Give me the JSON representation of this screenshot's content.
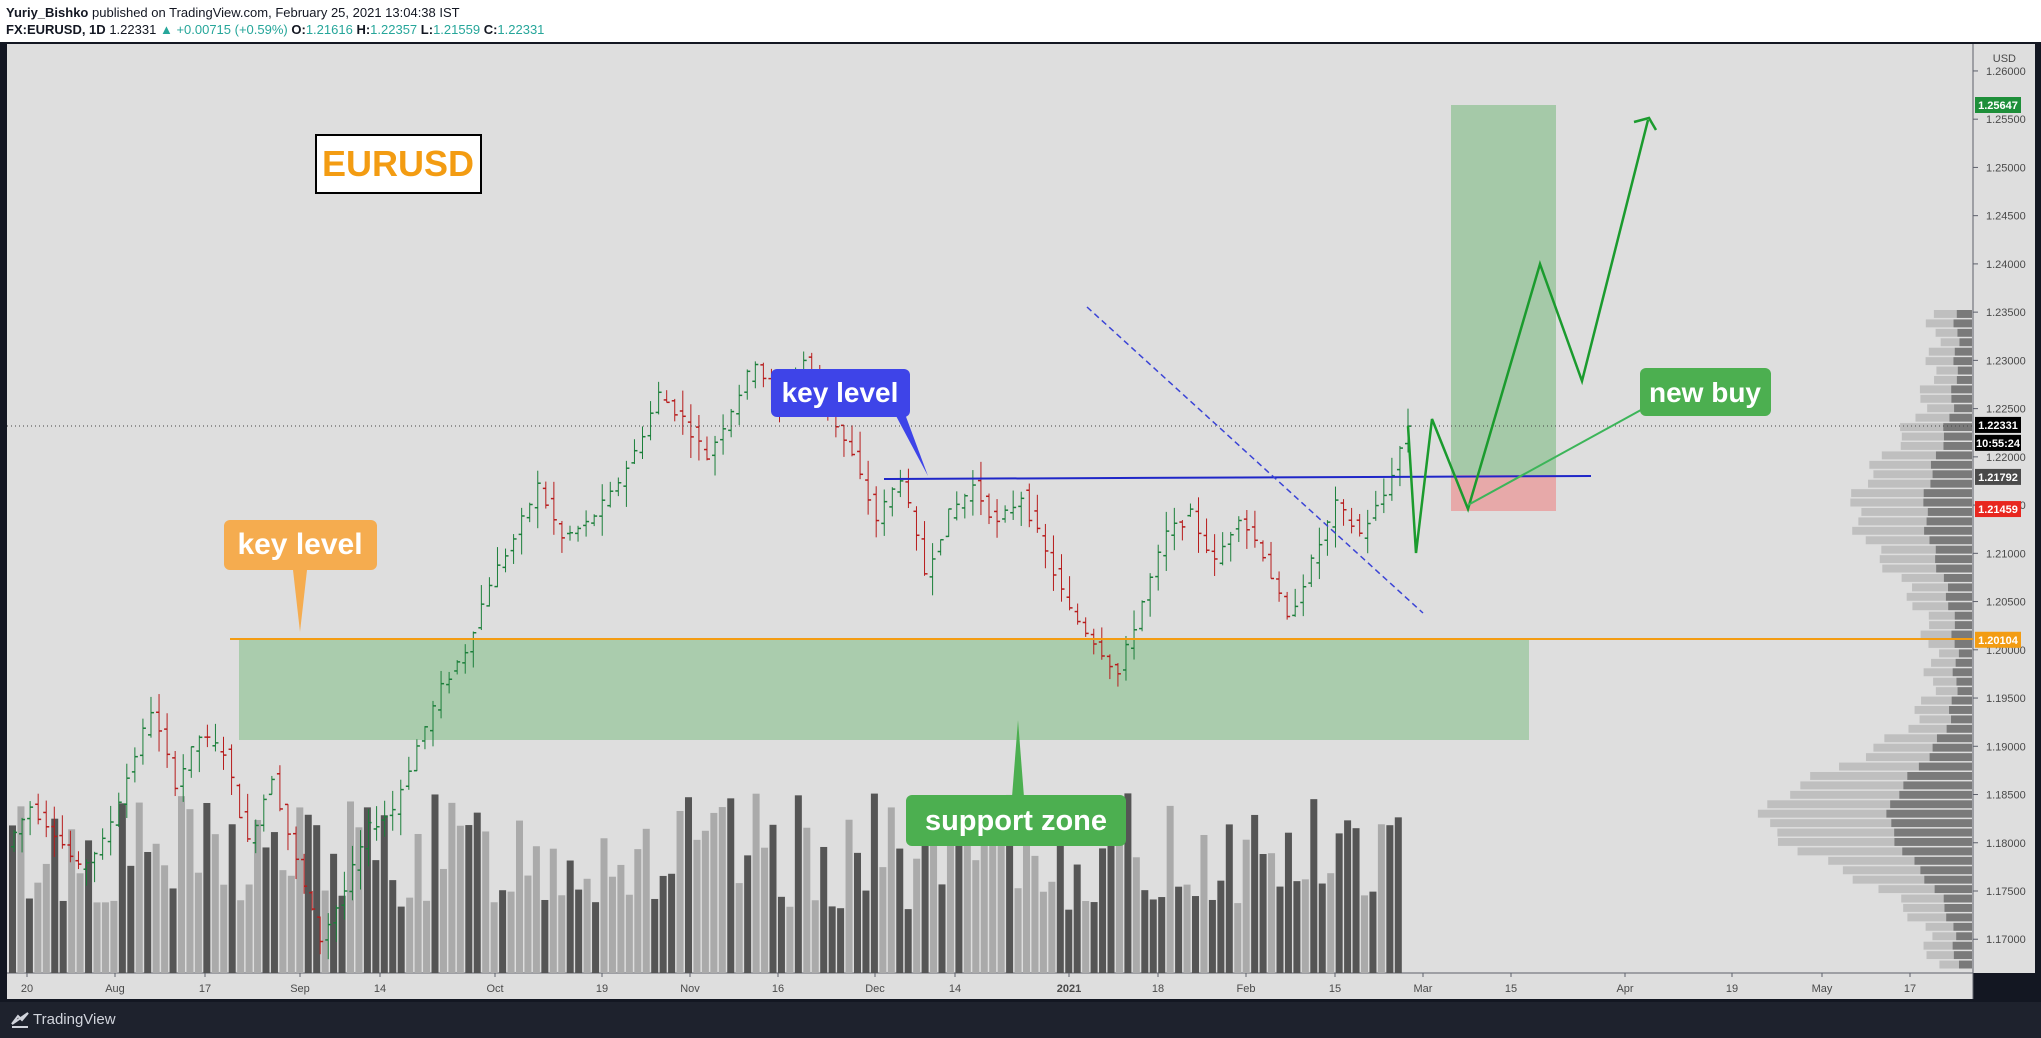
{
  "header": {
    "author": "Yuriy_Bishko",
    "published": "published on TradingView.com, February 25, 2021 13:04:38 IST",
    "symbol": "FX:EURUSD, 1D",
    "last": "1.22331",
    "change": "+0.00715 (+0.59%)",
    "o_label": "O:",
    "o": "1.21616",
    "h_label": "H:",
    "h": "1.22357",
    "l_label": "L:",
    "l": "1.21559",
    "c_label": "C:",
    "c": "1.22331"
  },
  "footer": {
    "brand": "TradingView"
  },
  "chart_data": {
    "type": "candlestick",
    "symbol": "EURUSD",
    "interval": "1D",
    "currency": "USD",
    "y_axis": {
      "range": [
        1.1665,
        1.263
      ],
      "ticks": [
        "1.26000",
        "1.25500",
        "1.25000",
        "1.24500",
        "1.24000",
        "1.23500",
        "1.23000",
        "1.22500",
        "1.22000",
        "1.21500",
        "1.21000",
        "1.20500",
        "1.20000",
        "1.19500",
        "1.19000",
        "1.18500",
        "1.18000",
        "1.17500",
        "1.17000"
      ]
    },
    "x_axis": {
      "labels": [
        "20",
        "Aug",
        "17",
        "Sep",
        "14",
        "Oct",
        "19",
        "Nov",
        "16",
        "Dec",
        "14",
        "2021",
        "18",
        "Feb",
        "15",
        "Mar",
        "15",
        "Apr",
        "19",
        "May",
        "17"
      ]
    },
    "price_labels": [
      {
        "text": "1.25647",
        "price": 1.25647,
        "color": "#1e8f3a"
      },
      {
        "text": "1.22331",
        "price": 1.22331,
        "color": "#000000"
      },
      {
        "text": "10:55:24",
        "price": 1.22145,
        "color": "#000000"
      },
      {
        "text": "1.21792",
        "price": 1.21792,
        "color": "#4a4a4a"
      },
      {
        "text": "1.21459",
        "price": 1.21459,
        "color": "#e8271f"
      },
      {
        "text": "1.20104",
        "price": 1.20104,
        "color": "#f39c12"
      }
    ],
    "series_path": [
      [
        1.1796,
        1.1838
      ],
      [
        1.1838,
        1.1812
      ],
      [
        1.1812,
        1.1772
      ],
      [
        1.1772,
        1.18
      ],
      [
        1.18,
        1.1868
      ],
      [
        1.1868,
        1.1938
      ],
      [
        1.1938,
        1.1862
      ],
      [
        1.1862,
        1.191
      ],
      [
        1.191,
        1.1895
      ],
      [
        1.1895,
        1.18
      ],
      [
        1.18,
        1.187
      ],
      [
        1.187,
        1.178
      ],
      [
        1.178,
        1.17
      ],
      [
        1.17,
        1.175
      ],
      [
        1.175,
        1.1815
      ],
      [
        1.1815,
        1.1835
      ],
      [
        1.1835,
        1.19
      ],
      [
        1.19,
        1.196
      ],
      [
        1.196,
        1.2
      ],
      [
        1.2,
        1.207
      ],
      [
        1.207,
        1.2115
      ],
      [
        1.2115,
        1.217
      ],
      [
        1.217,
        1.2115
      ],
      [
        1.2115,
        1.213
      ],
      [
        1.213,
        1.216
      ],
      [
        1.216,
        1.2205
      ],
      [
        1.2205,
        1.2265
      ],
      [
        1.2265,
        1.224
      ],
      [
        1.224,
        1.22
      ],
      [
        1.22,
        1.225
      ],
      [
        1.225,
        1.23
      ],
      [
        1.23,
        1.225
      ],
      [
        1.225,
        1.23
      ],
      [
        1.23,
        1.225
      ],
      [
        1.225,
        1.22
      ],
      [
        1.22,
        1.2135
      ],
      [
        1.2135,
        1.218
      ],
      [
        1.218,
        1.208
      ],
      [
        1.208,
        1.214
      ],
      [
        1.214,
        1.217
      ],
      [
        1.217,
        1.213
      ],
      [
        1.213,
        1.216
      ],
      [
        1.216,
        1.21
      ],
      [
        1.21,
        1.204
      ],
      [
        1.204,
        1.201
      ],
      [
        1.201,
        1.1975
      ],
      [
        1.1975,
        1.205
      ],
      [
        1.205,
        1.212
      ],
      [
        1.212,
        1.214
      ],
      [
        1.214,
        1.209
      ],
      [
        1.209,
        1.214
      ],
      [
        1.214,
        1.21
      ],
      [
        1.21,
        1.203
      ],
      [
        1.203,
        1.209
      ],
      [
        1.209,
        1.215
      ],
      [
        1.215,
        1.212
      ],
      [
        1.212,
        1.216
      ],
      [
        1.216,
        1.2233
      ]
    ],
    "volume_note": "volume histogram along the bottom and volume profile on right",
    "drawings": {
      "title_box": "EURUSD",
      "orange_key_level": {
        "label": "key level",
        "price": 1.20104
      },
      "blue_key_level": {
        "label": "key level",
        "price_start": 1.2179,
        "price_end": 1.2181
      },
      "support_zone": {
        "label": "support zone",
        "top": 1.2003,
        "bottom": 1.1895
      },
      "new_buy": {
        "label": "new buy",
        "entry": 1.21459,
        "stop": 1.21459,
        "target": 1.25647
      },
      "projection_path": [
        1.2233,
        1.2105,
        1.2245,
        1.2145,
        1.218,
        1.24,
        1.2275,
        1.2548
      ]
    }
  }
}
